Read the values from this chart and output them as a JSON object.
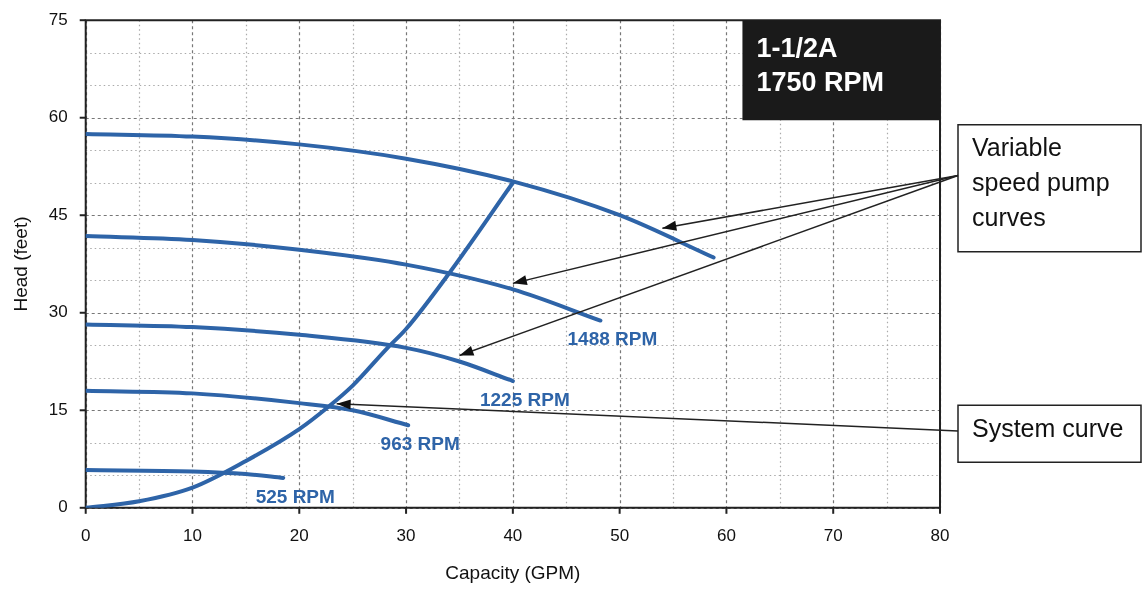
{
  "chart_data": {
    "type": "line",
    "xlabel": "Capacity (GPM)",
    "ylabel": "Head (feet)",
    "xlim": [
      0,
      80
    ],
    "ylim": [
      0,
      75
    ],
    "xticks": [
      0,
      {
        "value": 5,
        "label": null
      },
      10,
      {
        "value": 15,
        "label": null
      },
      20,
      {
        "value": 25,
        "label": null
      },
      30,
      {
        "value": 35,
        "label": null
      },
      40,
      {
        "value": 45,
        "label": null
      },
      50,
      {
        "value": 55,
        "label": null
      },
      60,
      {
        "value": 65,
        "label": null
      },
      70,
      {
        "value": 75,
        "label": null
      },
      80
    ],
    "yticks": [
      0,
      {
        "value": 5,
        "label": null
      },
      {
        "value": 10,
        "label": null
      },
      15,
      {
        "value": 20,
        "label": null
      },
      {
        "value": 25,
        "label": null
      },
      30,
      {
        "value": 35,
        "label": null
      },
      {
        "value": 40,
        "label": null
      },
      45,
      {
        "value": 50,
        "label": null
      },
      {
        "value": 55,
        "label": null
      },
      60,
      {
        "value": 65,
        "label": null
      },
      {
        "value": 70,
        "label": null
      },
      75
    ],
    "grid": true,
    "legend": false,
    "marker": "none",
    "line_style": "solid",
    "series": [
      {
        "color": "#2e64a8",
        "x": [
          0,
          10,
          20,
          30,
          40,
          50,
          58.8
        ],
        "values": [
          57.5,
          57.1,
          55.9,
          53.7,
          50.2,
          45,
          38.5
        ]
      },
      {
        "name": "1488 RPM",
        "color": "#2e64a8",
        "x": [
          0,
          10,
          20,
          30,
          40,
          48.2
        ],
        "values": [
          41.8,
          41.2,
          39.7,
          37.4,
          33.6,
          28.8
        ]
      },
      {
        "name": "1225 RPM",
        "color": "#2e64a8",
        "x": [
          0,
          10,
          20,
          30,
          35,
          40
        ],
        "values": [
          28.2,
          27.8,
          26.6,
          24.6,
          22.5,
          19.5
        ]
      },
      {
        "name": "963 RPM",
        "color": "#2e64a8",
        "x": [
          0,
          10,
          20,
          25,
          30.2
        ],
        "values": [
          18,
          17.6,
          16.1,
          15,
          12.7
        ]
      },
      {
        "name": "525 RPM",
        "color": "#2e64a8",
        "x": [
          0,
          10,
          15,
          18.5
        ],
        "values": [
          5.8,
          5.6,
          5.2,
          4.6
        ]
      },
      {
        "color": "#2e64a8",
        "x": [
          0,
          5,
          10,
          15,
          20,
          22.7,
          25,
          28.2,
          30,
          34,
          40
        ],
        "values": [
          0,
          1,
          3.1,
          7.2,
          12.1,
          15.5,
          18.8,
          24.5,
          27.5,
          36,
          50
        ]
      }
    ],
    "annotations": [
      "1-1/2A\n1750 RPM",
      {
        "text": "Variable speed pump curves",
        "x": 54,
        "y": 43
      },
      {
        "text": "System curve",
        "x": 23.5,
        "y": 16
      }
    ]
  }
}
